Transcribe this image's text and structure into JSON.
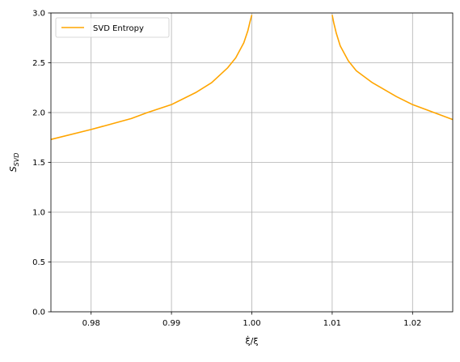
{
  "chart_data": {
    "type": "line",
    "xlabel": "ξ̇/ξ",
    "ylabel_main": "S",
    "ylabel_sub": "SVD",
    "xlim": [
      0.975,
      1.025
    ],
    "ylim": [
      0.0,
      3.0
    ],
    "x_ticks": [
      0.98,
      0.99,
      1.0,
      1.01,
      1.02
    ],
    "x_tick_labels": [
      "0.98",
      "0.99",
      "1.00",
      "1.01",
      "1.02"
    ],
    "y_ticks": [
      0.0,
      0.5,
      1.0,
      1.5,
      2.0,
      2.5,
      3.0
    ],
    "y_tick_labels": [
      "0.0",
      "0.5",
      "1.0",
      "1.5",
      "2.0",
      "2.5",
      "3.0"
    ],
    "grid": true,
    "legend_position": "upper-left",
    "series": [
      {
        "name": "SVD Entropy",
        "color": "#ffa500",
        "segments": [
          {
            "x": [
              0.975,
              0.98,
              0.985,
              0.987,
              0.99,
              0.993,
              0.995,
              0.997,
              0.998,
              0.999,
              0.9995,
              0.9998,
              1.0
            ],
            "y": [
              1.73,
              1.83,
              1.94,
              2.0,
              2.08,
              2.2,
              2.3,
              2.45,
              2.55,
              2.7,
              2.82,
              2.92,
              2.98
            ]
          },
          {
            "x": [
              1.01,
              1.0102,
              1.0105,
              1.011,
              1.012,
              1.013,
              1.015,
              1.018,
              1.02,
              1.022,
              1.025
            ],
            "y": [
              2.98,
              2.9,
              2.8,
              2.67,
              2.52,
              2.42,
              2.3,
              2.16,
              2.08,
              2.02,
              1.93
            ]
          }
        ]
      }
    ]
  }
}
